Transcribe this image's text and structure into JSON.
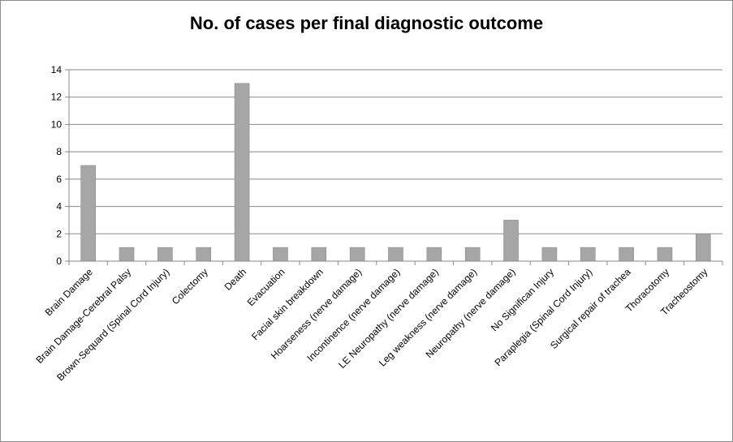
{
  "chart_data": {
    "type": "bar",
    "title": "No. of cases per final diagnostic outcome",
    "xlabel": "",
    "ylabel": "",
    "categories": [
      "Brain Damage",
      "Brain Damage-Cerebral Palsy",
      "Brown-Sequard (Spinal Cord Injury)",
      "Colectomy",
      "Death",
      "Evacuation",
      "Facial skin breakdown",
      "Hoarseness (nerve damage)",
      "Incontinence (nerve damage)",
      "LE Neuropathy (nerve damage)",
      "Leg weakness (nerve damage)",
      "Neuropathy (nerve damage)",
      "No Significan Injury",
      "Paraplegia (Spinal Cord Injury)",
      "Surgical repair of trachea",
      "Thoracotomy",
      "Tracheostomy"
    ],
    "values": [
      7,
      1,
      1,
      1,
      13,
      1,
      1,
      1,
      1,
      1,
      1,
      3,
      1,
      1,
      1,
      1,
      2
    ],
    "ylim": [
      0,
      14
    ],
    "yticks": [
      0,
      2,
      4,
      6,
      8,
      10,
      12,
      14
    ],
    "grid": true,
    "legend": "none",
    "colors": {
      "bar": "#a6a6a6",
      "bar_stroke": "#8a8a8a",
      "grid": "#888888",
      "axis": "#888888"
    }
  }
}
